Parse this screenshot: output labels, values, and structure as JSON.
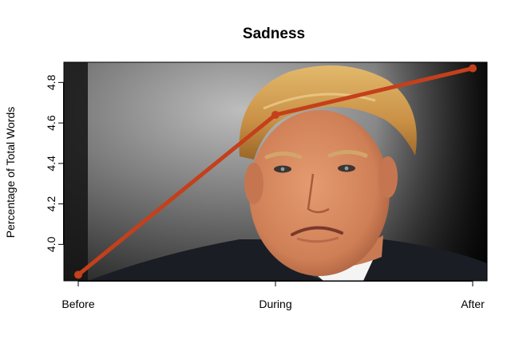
{
  "chart_data": {
    "type": "line",
    "title": "Sadness",
    "xlabel": "",
    "ylabel": "Percentage of Total Words",
    "categories": [
      "Before",
      "During",
      "After"
    ],
    "series": [
      {
        "values": [
          3.85,
          4.64,
          4.87
        ]
      }
    ],
    "yticks": [
      4.0,
      4.2,
      4.4,
      4.6,
      4.8
    ],
    "ytick_labels": [
      "4.0",
      "4.2",
      "4.4",
      "4.6",
      "4.8"
    ],
    "ylim": [
      3.82,
      4.9
    ],
    "grid": false,
    "legend": "none",
    "colors": {
      "line": "#c4401b",
      "frame": "#000000"
    }
  }
}
